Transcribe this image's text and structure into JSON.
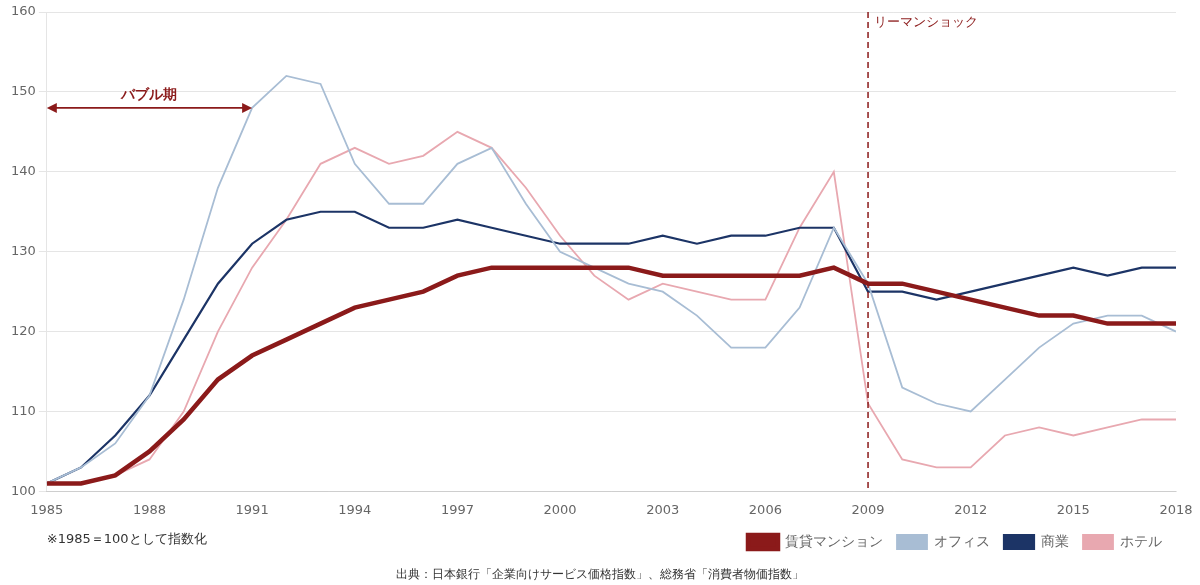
{
  "chart_data": {
    "type": "line",
    "x": [
      1985,
      1986,
      1987,
      1988,
      1989,
      1990,
      1991,
      1992,
      1993,
      1994,
      1995,
      1996,
      1997,
      1998,
      1999,
      2000,
      2001,
      2002,
      2003,
      2004,
      2005,
      2006,
      2007,
      2008,
      2009,
      2010,
      2011,
      2012,
      2013,
      2014,
      2015,
      2016,
      2017,
      2018
    ],
    "series": [
      {
        "name": "賃貸マンション",
        "color": "#8B1A1A",
        "values": [
          101,
          101,
          102,
          105,
          109,
          114,
          117,
          119,
          121,
          123,
          124,
          125,
          127,
          128,
          128,
          128,
          128,
          128,
          127,
          127,
          127,
          127,
          127,
          128,
          126,
          126,
          125,
          124,
          123,
          122,
          122,
          121,
          121,
          121
        ]
      },
      {
        "name": "オフィス",
        "color": "#A8BDD4",
        "values": [
          101,
          103,
          106,
          112,
          124,
          138,
          148,
          152,
          151,
          141,
          136,
          136,
          141,
          143,
          136,
          130,
          128,
          126,
          125,
          122,
          118,
          118,
          123,
          133,
          126,
          113,
          111,
          110,
          114,
          118,
          121,
          122,
          122,
          120
        ]
      },
      {
        "name": "商業",
        "color": "#1C3466",
        "values": [
          101,
          103,
          107,
          112,
          119,
          126,
          131,
          134,
          135,
          135,
          133,
          133,
          134,
          133,
          132,
          131,
          131,
          131,
          132,
          131,
          132,
          132,
          133,
          133,
          125,
          125,
          124,
          125,
          126,
          127,
          128,
          127,
          128,
          128
        ]
      },
      {
        "name": "ホテル",
        "color": "#E8A8B0",
        "values": [
          101,
          101,
          102,
          104,
          110,
          120,
          128,
          134,
          141,
          143,
          141,
          142,
          145,
          143,
          138,
          132,
          127,
          124,
          126,
          125,
          124,
          124,
          133,
          140,
          111,
          104,
          103,
          103,
          107,
          108,
          107,
          108,
          109,
          109
        ]
      }
    ],
    "xlim": [
      1985,
      2018
    ],
    "xticks": [
      1985,
      1988,
      1991,
      1994,
      1997,
      2000,
      2003,
      2006,
      2009,
      2012,
      2015,
      2018
    ],
    "ylim": [
      100,
      160
    ],
    "yticks": [
      100,
      110,
      120,
      130,
      140,
      150,
      160
    ],
    "grid": "y",
    "legend": "lower right",
    "annotations": [
      {
        "type": "vline",
        "x": 2009,
        "text": "リーマンショック",
        "color": "#8B1A1A"
      },
      {
        "type": "span_arrow",
        "x": [
          1985,
          1991
        ],
        "y": 148,
        "text": "バブル期",
        "color": "#8B1A1A"
      },
      {
        "type": "note",
        "text": "※1985＝100として指数化"
      },
      {
        "type": "source",
        "text": "出典：日本銀行「企業向けサービス価格指数」、総務省「消費者物価指数」"
      }
    ]
  }
}
